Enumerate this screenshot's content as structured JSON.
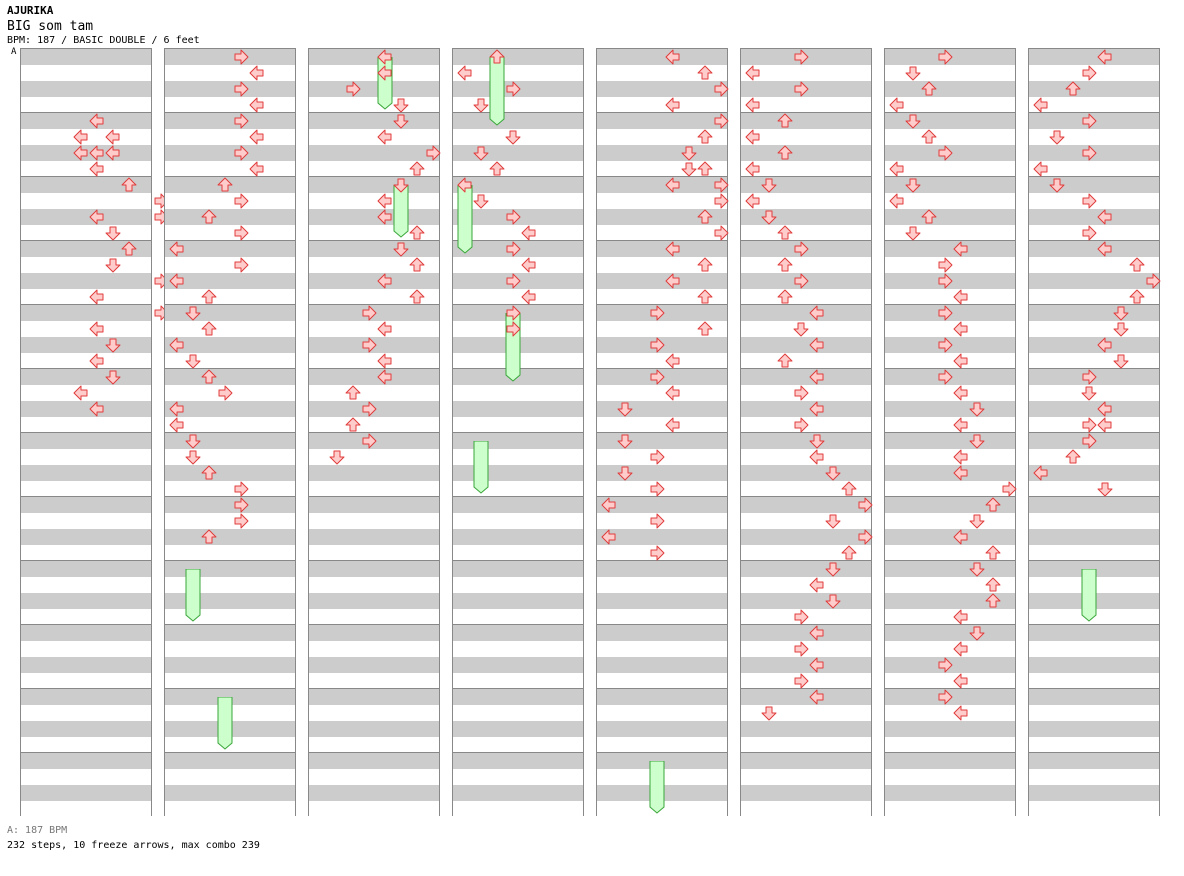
{
  "header": {
    "artist": "AJURIKA",
    "title": "BIG som tam",
    "meta": "BPM: 187 / BASIC DOUBLE / 6 feet"
  },
  "bpm_marker": "A",
  "footer": {
    "bpm": "A: 187 BPM",
    "stats": "232 steps, 10 freeze arrows, max combo 239"
  },
  "colors": {
    "stripe_dark": "#cccccc",
    "stripe_light": "#ffffff",
    "arrow_fill": "#ffcccc",
    "arrow_stroke": "#e03c3c",
    "freeze_fill": "#ccffcc",
    "freeze_stroke": "#3aa63a"
  },
  "chart_data": {
    "type": "step-chart",
    "notes": [
      [
        [
          4,
          4,
          "L"
        ],
        [
          5,
          3,
          "L"
        ],
        [
          5,
          5,
          "L"
        ],
        [
          6,
          3,
          "L"
        ],
        [
          6,
          4,
          "L"
        ],
        [
          6,
          5,
          "L"
        ],
        [
          7,
          4,
          "L"
        ],
        [
          8,
          6,
          "U"
        ],
        [
          9,
          8,
          "R"
        ],
        [
          10,
          4,
          "L"
        ],
        [
          10,
          8,
          "R"
        ],
        [
          11,
          5,
          "D"
        ],
        [
          12,
          6,
          "U"
        ],
        [
          13,
          5,
          "D"
        ],
        [
          14,
          8,
          "R"
        ],
        [
          15,
          4,
          "L"
        ],
        [
          16,
          8,
          "R"
        ],
        [
          17,
          4,
          "L"
        ],
        [
          18,
          5,
          "D"
        ],
        [
          19,
          4,
          "L"
        ],
        [
          20,
          5,
          "D"
        ],
        [
          21,
          3,
          "L"
        ],
        [
          22,
          4,
          "L"
        ]
      ],
      [
        [
          0,
          4,
          "R"
        ],
        [
          1,
          5,
          "L"
        ],
        [
          2,
          4,
          "R"
        ],
        [
          3,
          5,
          "L"
        ],
        [
          4,
          4,
          "R"
        ],
        [
          5,
          5,
          "L"
        ],
        [
          6,
          4,
          "R"
        ],
        [
          7,
          5,
          "L"
        ],
        [
          8,
          3,
          "U"
        ],
        [
          9,
          4,
          "R"
        ],
        [
          10,
          2,
          "U"
        ],
        [
          11,
          4,
          "R"
        ],
        [
          12,
          0,
          "L"
        ],
        [
          13,
          4,
          "R"
        ],
        [
          14,
          0,
          "L"
        ],
        [
          15,
          2,
          "U"
        ],
        [
          16,
          1,
          "D"
        ],
        [
          17,
          2,
          "U"
        ],
        [
          18,
          0,
          "L"
        ],
        [
          19,
          1,
          "D"
        ],
        [
          20,
          2,
          "U"
        ],
        [
          21,
          3,
          "R"
        ],
        [
          22,
          0,
          "L"
        ],
        [
          23,
          0,
          "L"
        ],
        [
          24,
          1,
          "D"
        ],
        [
          25,
          1,
          "D"
        ],
        [
          26,
          2,
          "U"
        ],
        [
          27,
          4,
          "R"
        ],
        [
          28,
          4,
          "R"
        ],
        [
          29,
          4,
          "R"
        ],
        [
          30,
          2,
          "U"
        ]
      ],
      [
        [
          0,
          4,
          "L"
        ],
        [
          1,
          4,
          "L"
        ],
        [
          2,
          2,
          "R"
        ],
        [
          3,
          5,
          "D"
        ],
        [
          4,
          5,
          "D"
        ],
        [
          5,
          4,
          "L"
        ],
        [
          6,
          7,
          "R"
        ],
        [
          7,
          6,
          "U"
        ],
        [
          8,
          5,
          "D"
        ],
        [
          9,
          4,
          "L"
        ],
        [
          10,
          4,
          "L"
        ],
        [
          11,
          6,
          "U"
        ],
        [
          12,
          5,
          "D"
        ],
        [
          13,
          6,
          "U"
        ],
        [
          14,
          4,
          "L"
        ],
        [
          15,
          6,
          "U"
        ],
        [
          16,
          3,
          "R"
        ],
        [
          17,
          4,
          "L"
        ],
        [
          18,
          3,
          "R"
        ],
        [
          19,
          4,
          "L"
        ],
        [
          20,
          4,
          "L"
        ],
        [
          21,
          2,
          "U"
        ],
        [
          22,
          3,
          "R"
        ],
        [
          23,
          2,
          "U"
        ],
        [
          24,
          3,
          "R"
        ],
        [
          25,
          1,
          "D"
        ]
      ],
      [
        [
          0,
          2,
          "U"
        ],
        [
          1,
          0,
          "L"
        ],
        [
          2,
          3,
          "R"
        ],
        [
          3,
          1,
          "D"
        ],
        [
          5,
          3,
          "D"
        ],
        [
          6,
          1,
          "D"
        ],
        [
          7,
          2,
          "U"
        ],
        [
          8,
          0,
          "L"
        ],
        [
          9,
          1,
          "D"
        ],
        [
          10,
          3,
          "R"
        ],
        [
          11,
          4,
          "L"
        ],
        [
          12,
          3,
          "R"
        ],
        [
          13,
          4,
          "L"
        ],
        [
          14,
          3,
          "R"
        ],
        [
          15,
          4,
          "L"
        ],
        [
          16,
          3,
          "R"
        ],
        [
          17,
          3,
          "R"
        ]
      ],
      [
        [
          0,
          4,
          "L"
        ],
        [
          1,
          6,
          "U"
        ],
        [
          2,
          7,
          "R"
        ],
        [
          3,
          4,
          "L"
        ],
        [
          4,
          7,
          "R"
        ],
        [
          5,
          6,
          "U"
        ],
        [
          6,
          5,
          "D"
        ],
        [
          7,
          5,
          "D"
        ],
        [
          7,
          6,
          "U"
        ],
        [
          8,
          4,
          "L"
        ],
        [
          8,
          7,
          "R"
        ],
        [
          9,
          7,
          "R"
        ],
        [
          10,
          6,
          "U"
        ],
        [
          11,
          7,
          "R"
        ],
        [
          12,
          4,
          "L"
        ],
        [
          13,
          6,
          "U"
        ],
        [
          14,
          4,
          "L"
        ],
        [
          15,
          6,
          "U"
        ],
        [
          16,
          3,
          "R"
        ],
        [
          17,
          6,
          "U"
        ],
        [
          18,
          3,
          "R"
        ],
        [
          19,
          4,
          "L"
        ],
        [
          20,
          3,
          "R"
        ],
        [
          21,
          4,
          "L"
        ],
        [
          22,
          1,
          "D"
        ],
        [
          23,
          4,
          "L"
        ],
        [
          24,
          1,
          "D"
        ],
        [
          25,
          3,
          "R"
        ],
        [
          26,
          1,
          "D"
        ],
        [
          27,
          3,
          "R"
        ],
        [
          28,
          0,
          "L"
        ],
        [
          29,
          3,
          "R"
        ],
        [
          30,
          0,
          "L"
        ],
        [
          31,
          3,
          "R"
        ]
      ],
      [
        [
          0,
          3,
          "R"
        ],
        [
          1,
          0,
          "L"
        ],
        [
          2,
          3,
          "R"
        ],
        [
          3,
          0,
          "L"
        ],
        [
          4,
          2,
          "U"
        ],
        [
          5,
          0,
          "L"
        ],
        [
          6,
          2,
          "U"
        ],
        [
          7,
          0,
          "L"
        ],
        [
          8,
          1,
          "D"
        ],
        [
          9,
          0,
          "L"
        ],
        [
          10,
          1,
          "D"
        ],
        [
          11,
          2,
          "U"
        ],
        [
          12,
          3,
          "R"
        ],
        [
          13,
          2,
          "U"
        ],
        [
          14,
          3,
          "R"
        ],
        [
          15,
          2,
          "U"
        ],
        [
          16,
          4,
          "L"
        ],
        [
          17,
          3,
          "D"
        ],
        [
          18,
          4,
          "L"
        ],
        [
          19,
          2,
          "U"
        ],
        [
          20,
          4,
          "L"
        ],
        [
          21,
          3,
          "R"
        ],
        [
          22,
          4,
          "L"
        ],
        [
          23,
          3,
          "R"
        ],
        [
          24,
          4,
          "D"
        ],
        [
          25,
          4,
          "L"
        ],
        [
          26,
          5,
          "D"
        ],
        [
          27,
          6,
          "U"
        ],
        [
          28,
          7,
          "R"
        ],
        [
          29,
          5,
          "D"
        ],
        [
          30,
          7,
          "R"
        ],
        [
          31,
          6,
          "U"
        ],
        [
          32,
          5,
          "D"
        ],
        [
          33,
          4,
          "L"
        ],
        [
          34,
          5,
          "D"
        ],
        [
          35,
          3,
          "R"
        ],
        [
          36,
          4,
          "L"
        ],
        [
          37,
          3,
          "R"
        ],
        [
          38,
          4,
          "L"
        ],
        [
          39,
          3,
          "R"
        ],
        [
          40,
          4,
          "L"
        ],
        [
          41,
          1,
          "D"
        ]
      ],
      [
        [
          0,
          3,
          "R"
        ],
        [
          1,
          1,
          "D"
        ],
        [
          2,
          2,
          "U"
        ],
        [
          3,
          0,
          "L"
        ],
        [
          4,
          1,
          "D"
        ],
        [
          5,
          2,
          "U"
        ],
        [
          6,
          3,
          "R"
        ],
        [
          7,
          0,
          "L"
        ],
        [
          8,
          1,
          "D"
        ],
        [
          9,
          0,
          "L"
        ],
        [
          10,
          2,
          "U"
        ],
        [
          11,
          1,
          "D"
        ],
        [
          12,
          4,
          "L"
        ],
        [
          13,
          3,
          "R"
        ],
        [
          14,
          3,
          "R"
        ],
        [
          15,
          4,
          "L"
        ],
        [
          16,
          3,
          "R"
        ],
        [
          17,
          4,
          "L"
        ],
        [
          18,
          3,
          "R"
        ],
        [
          19,
          4,
          "L"
        ],
        [
          20,
          3,
          "R"
        ],
        [
          21,
          4,
          "L"
        ],
        [
          22,
          5,
          "D"
        ],
        [
          23,
          4,
          "L"
        ],
        [
          24,
          5,
          "D"
        ],
        [
          25,
          4,
          "L"
        ],
        [
          26,
          4,
          "L"
        ],
        [
          27,
          7,
          "R"
        ],
        [
          28,
          6,
          "U"
        ],
        [
          29,
          5,
          "D"
        ],
        [
          30,
          4,
          "L"
        ],
        [
          31,
          6,
          "U"
        ],
        [
          32,
          5,
          "D"
        ],
        [
          33,
          6,
          "U"
        ],
        [
          34,
          6,
          "U"
        ],
        [
          35,
          4,
          "L"
        ],
        [
          36,
          5,
          "D"
        ],
        [
          37,
          4,
          "L"
        ],
        [
          38,
          3,
          "R"
        ],
        [
          39,
          4,
          "L"
        ],
        [
          40,
          3,
          "R"
        ],
        [
          41,
          4,
          "L"
        ]
      ],
      [
        [
          0,
          4,
          "L"
        ],
        [
          1,
          3,
          "R"
        ],
        [
          2,
          2,
          "U"
        ],
        [
          3,
          0,
          "L"
        ],
        [
          4,
          3,
          "R"
        ],
        [
          5,
          1,
          "D"
        ],
        [
          6,
          3,
          "R"
        ],
        [
          7,
          0,
          "L"
        ],
        [
          8,
          1,
          "D"
        ],
        [
          9,
          3,
          "R"
        ],
        [
          10,
          4,
          "L"
        ],
        [
          11,
          3,
          "R"
        ],
        [
          12,
          4,
          "L"
        ],
        [
          13,
          6,
          "U"
        ],
        [
          14,
          7,
          "R"
        ],
        [
          15,
          6,
          "U"
        ],
        [
          16,
          5,
          "D"
        ],
        [
          17,
          5,
          "D"
        ],
        [
          18,
          4,
          "L"
        ],
        [
          19,
          5,
          "D"
        ],
        [
          20,
          3,
          "R"
        ],
        [
          21,
          3,
          "D"
        ],
        [
          22,
          4,
          "L"
        ],
        [
          23,
          3,
          "R"
        ],
        [
          23,
          4,
          "L"
        ],
        [
          24,
          3,
          "R"
        ],
        [
          25,
          2,
          "U"
        ],
        [
          26,
          0,
          "L"
        ],
        [
          27,
          4,
          "D"
        ]
      ]
    ],
    "freezes": [
      [],
      [
        [
          32,
          35,
          1
        ],
        [
          40,
          43,
          3
        ]
      ],
      [
        [
          0,
          3,
          4
        ],
        [
          8,
          11,
          5
        ]
      ],
      [
        [
          0,
          4,
          2
        ],
        [
          8,
          12,
          0
        ],
        [
          16,
          20,
          3
        ],
        [
          24,
          27,
          1
        ]
      ],
      [
        [
          44,
          47,
          3
        ]
      ],
      [],
      [],
      [
        [
          32,
          35,
          3
        ]
      ]
    ]
  }
}
